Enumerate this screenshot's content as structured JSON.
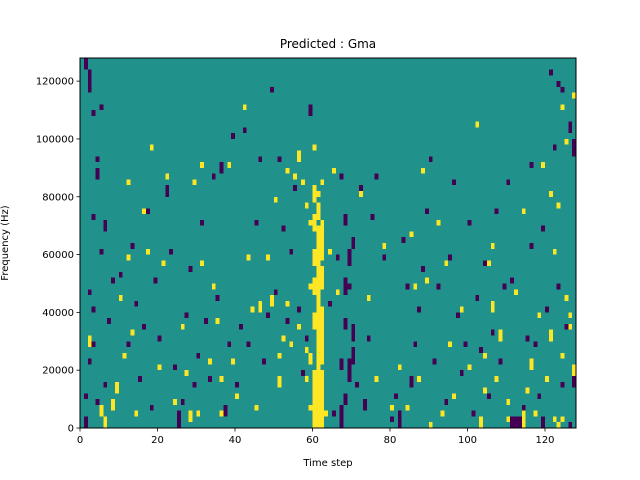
{
  "chart_data": {
    "type": "heatmap",
    "title": "Predicted : Gma",
    "xlabel": "Time step",
    "ylabel": "Frequency (Hz)",
    "xlim": [
      0,
      128
    ],
    "ylim": [
      0,
      128000
    ],
    "x_ticks": [
      0,
      20,
      40,
      60,
      80,
      100,
      120
    ],
    "y_ticks": [
      0,
      20000,
      40000,
      60000,
      80000,
      100000,
      120000
    ],
    "x_tick_labels": [
      "0",
      "20",
      "40",
      "60",
      "80",
      "100",
      "120"
    ],
    "y_tick_labels": [
      "0",
      "20000",
      "40000",
      "60000",
      "80000",
      "100000",
      "120000"
    ],
    "n_time_steps": 128,
    "n_freq_bins": 128,
    "bin_hz": 1000,
    "value_levels": [
      -1,
      0,
      1
    ],
    "colors": {
      "low": "#440154",
      "mid": "#21918c",
      "high": "#fde725"
    },
    "background_value": 0,
    "cells_high": [
      [
        60,
        0,
        12
      ],
      [
        61,
        0,
        14
      ],
      [
        62,
        0,
        12
      ],
      [
        59,
        6,
        8
      ],
      [
        63,
        4,
        6
      ],
      [
        60,
        12,
        20
      ],
      [
        61,
        14,
        24
      ],
      [
        62,
        12,
        20
      ],
      [
        59,
        22,
        26
      ],
      [
        61,
        24,
        34
      ],
      [
        62,
        22,
        36
      ],
      [
        60,
        34,
        40
      ],
      [
        61,
        34,
        44
      ],
      [
        62,
        36,
        42
      ],
      [
        61,
        44,
        56
      ],
      [
        60,
        46,
        52
      ],
      [
        62,
        48,
        56
      ],
      [
        60,
        56,
        62
      ],
      [
        61,
        56,
        70
      ],
      [
        62,
        58,
        64
      ],
      [
        60,
        68,
        74
      ],
      [
        61,
        72,
        78
      ],
      [
        62,
        64,
        72
      ],
      [
        60,
        78,
        84
      ],
      [
        61,
        80,
        82
      ],
      [
        62,
        84,
        86
      ],
      [
        59,
        70,
        72
      ],
      [
        58,
        76,
        78
      ],
      [
        57,
        84,
        86
      ],
      [
        56,
        92,
        96
      ],
      [
        55,
        86,
        88
      ],
      [
        53,
        42,
        44
      ],
      [
        2,
        28,
        32
      ],
      [
        5,
        4,
        8
      ],
      [
        6,
        0,
        4
      ],
      [
        8,
        6,
        10
      ],
      [
        9,
        12,
        16
      ],
      [
        10,
        44,
        46
      ],
      [
        11,
        24,
        26
      ],
      [
        12,
        58,
        60
      ],
      [
        12,
        84,
        86
      ],
      [
        13,
        32,
        34
      ],
      [
        14,
        4,
        6
      ],
      [
        16,
        74,
        76
      ],
      [
        17,
        60,
        62
      ],
      [
        18,
        96,
        98
      ],
      [
        20,
        20,
        22
      ],
      [
        21,
        56,
        58
      ],
      [
        22,
        86,
        88
      ],
      [
        24,
        8,
        10
      ],
      [
        26,
        34,
        36
      ],
      [
        27,
        18,
        20
      ],
      [
        28,
        2,
        6
      ],
      [
        29,
        84,
        86
      ],
      [
        30,
        4,
        6
      ],
      [
        31,
        56,
        58
      ],
      [
        31,
        90,
        92
      ],
      [
        33,
        22,
        24
      ],
      [
        34,
        48,
        50
      ],
      [
        35,
        36,
        38
      ],
      [
        36,
        4,
        6
      ],
      [
        36,
        16,
        18
      ],
      [
        38,
        90,
        92
      ],
      [
        39,
        22,
        24
      ],
      [
        40,
        10,
        12
      ],
      [
        42,
        110,
        112
      ],
      [
        43,
        58,
        60
      ],
      [
        44,
        40,
        42
      ],
      [
        45,
        6,
        8
      ],
      [
        46,
        40,
        44
      ],
      [
        48,
        58,
        60
      ],
      [
        49,
        42,
        46
      ],
      [
        50,
        78,
        80
      ],
      [
        51,
        14,
        18
      ],
      [
        51,
        24,
        26
      ],
      [
        52,
        30,
        32
      ],
      [
        53,
        88,
        90
      ],
      [
        54,
        28,
        30
      ],
      [
        56,
        34,
        36
      ],
      [
        58,
        16,
        18
      ],
      [
        58,
        26,
        28
      ],
      [
        59,
        48,
        50
      ],
      [
        60,
        96,
        98
      ],
      [
        64,
        60,
        62
      ],
      [
        65,
        88,
        90
      ],
      [
        66,
        46,
        48
      ],
      [
        72,
        80,
        82
      ],
      [
        74,
        44,
        46
      ],
      [
        76,
        16,
        18
      ],
      [
        78,
        62,
        64
      ],
      [
        80,
        6,
        8
      ],
      [
        82,
        20,
        22
      ],
      [
        84,
        6,
        8
      ],
      [
        85,
        66,
        68
      ],
      [
        86,
        48,
        50
      ],
      [
        87,
        16,
        18
      ],
      [
        88,
        88,
        90
      ],
      [
        89,
        50,
        52
      ],
      [
        90,
        0,
        2
      ],
      [
        92,
        70,
        72
      ],
      [
        93,
        4,
        6
      ],
      [
        94,
        56,
        58
      ],
      [
        95,
        28,
        30
      ],
      [
        96,
        10,
        12
      ],
      [
        98,
        40,
        42
      ],
      [
        100,
        20,
        22
      ],
      [
        102,
        104,
        106
      ],
      [
        103,
        0,
        4
      ],
      [
        104,
        12,
        14
      ],
      [
        104,
        24,
        26
      ],
      [
        105,
        56,
        58
      ],
      [
        106,
        40,
        44
      ],
      [
        106,
        62,
        64
      ],
      [
        107,
        16,
        18
      ],
      [
        108,
        30,
        34
      ],
      [
        110,
        8,
        10
      ],
      [
        112,
        46,
        48
      ],
      [
        114,
        74,
        76
      ],
      [
        114,
        0,
        6
      ],
      [
        115,
        12,
        14
      ],
      [
        116,
        20,
        24
      ],
      [
        117,
        4,
        6
      ],
      [
        118,
        38,
        40
      ],
      [
        119,
        90,
        92
      ],
      [
        120,
        16,
        18
      ],
      [
        121,
        30,
        34
      ],
      [
        122,
        60,
        62
      ],
      [
        123,
        76,
        78
      ],
      [
        124,
        24,
        26
      ],
      [
        125,
        44,
        46
      ],
      [
        125,
        98,
        100
      ],
      [
        126,
        34,
        36
      ],
      [
        127,
        18,
        22
      ],
      [
        127,
        114,
        116
      ],
      [
        124,
        2,
        4
      ],
      [
        123,
        0,
        2
      ],
      [
        110,
        2,
        4
      ],
      [
        122,
        2,
        4
      ],
      [
        126,
        38,
        40
      ],
      [
        121,
        80,
        82
      ],
      [
        124,
        110,
        112
      ]
    ],
    "cells_low": [
      [
        1,
        124,
        128
      ],
      [
        2,
        116,
        124
      ],
      [
        3,
        108,
        110
      ],
      [
        4,
        86,
        90
      ],
      [
        5,
        110,
        112
      ],
      [
        6,
        68,
        72
      ],
      [
        3,
        72,
        74
      ],
      [
        4,
        92,
        94
      ],
      [
        2,
        46,
        48
      ],
      [
        3,
        40,
        42
      ],
      [
        1,
        0,
        4
      ],
      [
        1,
        10,
        12
      ],
      [
        2,
        22,
        24
      ],
      [
        4,
        8,
        10
      ],
      [
        5,
        60,
        62
      ],
      [
        3,
        28,
        30
      ],
      [
        6,
        14,
        16
      ],
      [
        7,
        36,
        38
      ],
      [
        8,
        50,
        52
      ],
      [
        10,
        52,
        54
      ],
      [
        12,
        28,
        30
      ],
      [
        13,
        62,
        64
      ],
      [
        14,
        42,
        44
      ],
      [
        15,
        16,
        18
      ],
      [
        16,
        34,
        36
      ],
      [
        17,
        74,
        76
      ],
      [
        18,
        6,
        8
      ],
      [
        19,
        50,
        52
      ],
      [
        20,
        30,
        32
      ],
      [
        22,
        80,
        84
      ],
      [
        23,
        60,
        62
      ],
      [
        24,
        20,
        22
      ],
      [
        25,
        0,
        6
      ],
      [
        26,
        8,
        10
      ],
      [
        27,
        38,
        40
      ],
      [
        28,
        54,
        56
      ],
      [
        29,
        14,
        16
      ],
      [
        30,
        24,
        26
      ],
      [
        31,
        70,
        72
      ],
      [
        32,
        36,
        38
      ],
      [
        33,
        16,
        18
      ],
      [
        34,
        86,
        88
      ],
      [
        35,
        44,
        46
      ],
      [
        36,
        88,
        92
      ],
      [
        37,
        4,
        8
      ],
      [
        38,
        28,
        30
      ],
      [
        39,
        100,
        102
      ],
      [
        40,
        14,
        16
      ],
      [
        41,
        34,
        36
      ],
      [
        42,
        102,
        104
      ],
      [
        43,
        28,
        30
      ],
      [
        44,
        40,
        42
      ],
      [
        45,
        70,
        72
      ],
      [
        46,
        92,
        94
      ],
      [
        47,
        22,
        24
      ],
      [
        48,
        38,
        40
      ],
      [
        49,
        116,
        118
      ],
      [
        50,
        46,
        48
      ],
      [
        51,
        92,
        94
      ],
      [
        52,
        68,
        70
      ],
      [
        53,
        36,
        38
      ],
      [
        54,
        60,
        62
      ],
      [
        55,
        82,
        84
      ],
      [
        56,
        40,
        42
      ],
      [
        57,
        18,
        20
      ],
      [
        58,
        30,
        32
      ],
      [
        59,
        108,
        112
      ],
      [
        64,
        42,
        44
      ],
      [
        65,
        4,
        6
      ],
      [
        66,
        58,
        60
      ],
      [
        67,
        0,
        8
      ],
      [
        68,
        8,
        12
      ],
      [
        69,
        16,
        24
      ],
      [
        70,
        30,
        36
      ],
      [
        68,
        46,
        52
      ],
      [
        69,
        56,
        62
      ],
      [
        70,
        62,
        66
      ],
      [
        68,
        70,
        74
      ],
      [
        67,
        86,
        88
      ],
      [
        69,
        48,
        50
      ],
      [
        70,
        22,
        28
      ],
      [
        68,
        34,
        38
      ],
      [
        67,
        20,
        24
      ],
      [
        71,
        14,
        16
      ],
      [
        72,
        82,
        84
      ],
      [
        73,
        6,
        10
      ],
      [
        74,
        30,
        32
      ],
      [
        75,
        72,
        74
      ],
      [
        76,
        86,
        88
      ],
      [
        78,
        58,
        60
      ],
      [
        80,
        2,
        4
      ],
      [
        81,
        10,
        12
      ],
      [
        82,
        0,
        6
      ],
      [
        83,
        64,
        66
      ],
      [
        84,
        48,
        50
      ],
      [
        85,
        14,
        18
      ],
      [
        86,
        28,
        30
      ],
      [
        87,
        40,
        42
      ],
      [
        88,
        54,
        56
      ],
      [
        89,
        74,
        76
      ],
      [
        90,
        92,
        94
      ],
      [
        91,
        22,
        24
      ],
      [
        92,
        48,
        50
      ],
      [
        94,
        8,
        10
      ],
      [
        95,
        58,
        60
      ],
      [
        96,
        84,
        86
      ],
      [
        97,
        38,
        40
      ],
      [
        98,
        18,
        20
      ],
      [
        99,
        28,
        30
      ],
      [
        100,
        70,
        72
      ],
      [
        101,
        4,
        6
      ],
      [
        102,
        44,
        46
      ],
      [
        103,
        26,
        28
      ],
      [
        104,
        56,
        58
      ],
      [
        105,
        10,
        12
      ],
      [
        106,
        32,
        34
      ],
      [
        107,
        74,
        76
      ],
      [
        108,
        22,
        24
      ],
      [
        109,
        48,
        50
      ],
      [
        110,
        84,
        86
      ],
      [
        111,
        0,
        4
      ],
      [
        112,
        0,
        4
      ],
      [
        113,
        0,
        4
      ],
      [
        114,
        6,
        8
      ],
      [
        115,
        30,
        32
      ],
      [
        116,
        62,
        64
      ],
      [
        117,
        28,
        30
      ],
      [
        118,
        10,
        12
      ],
      [
        119,
        68,
        70
      ],
      [
        120,
        40,
        42
      ],
      [
        121,
        122,
        124
      ],
      [
        122,
        96,
        98
      ],
      [
        123,
        48,
        50
      ],
      [
        124,
        116,
        118
      ],
      [
        125,
        34,
        36
      ],
      [
        126,
        102,
        106
      ],
      [
        127,
        94,
        100
      ],
      [
        127,
        14,
        18
      ],
      [
        124,
        14,
        16
      ],
      [
        119,
        0,
        4
      ],
      [
        126,
        0,
        2
      ],
      [
        111,
        50,
        52
      ],
      [
        116,
        90,
        92
      ],
      [
        123,
        118,
        120
      ]
    ]
  }
}
